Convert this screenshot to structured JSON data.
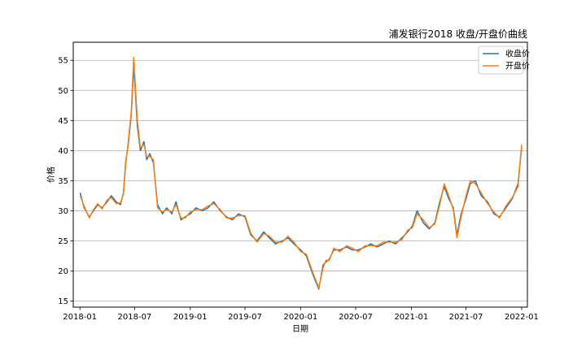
{
  "chart_data": {
    "type": "line",
    "title": "浦发银行2018 收盘/开盘价曲线",
    "xlabel": "日期",
    "ylabel": "价格",
    "xlim": [
      "2017-12-10",
      "2022-01-20"
    ],
    "ylim": [
      14.0,
      58.0
    ],
    "x_ticks": [
      "2018-01",
      "2018-07",
      "2019-01",
      "2019-07",
      "2020-01",
      "2020-07",
      "2021-01",
      "2021-07",
      "2022-01"
    ],
    "y_ticks": [
      15,
      20,
      25,
      30,
      35,
      40,
      45,
      50,
      55
    ],
    "grid": "horizontal",
    "legend": "top-right",
    "x": [
      "2018-01-02",
      "2018-01-15",
      "2018-02-01",
      "2018-02-15",
      "2018-03-01",
      "2018-03-15",
      "2018-04-01",
      "2018-04-15",
      "2018-05-01",
      "2018-05-15",
      "2018-05-25",
      "2018-06-01",
      "2018-06-10",
      "2018-06-20",
      "2018-06-28",
      "2018-07-03",
      "2018-07-10",
      "2018-07-20",
      "2018-08-01",
      "2018-08-10",
      "2018-08-20",
      "2018-09-01",
      "2018-09-15",
      "2018-10-01",
      "2018-10-15",
      "2018-11-01",
      "2018-11-15",
      "2018-12-01",
      "2018-12-15",
      "2019-01-01",
      "2019-01-20",
      "2019-02-10",
      "2019-03-01",
      "2019-03-20",
      "2019-04-10",
      "2019-05-01",
      "2019-05-20",
      "2019-06-10",
      "2019-07-01",
      "2019-07-20",
      "2019-08-10",
      "2019-09-01",
      "2019-09-20",
      "2019-10-10",
      "2019-11-01",
      "2019-11-20",
      "2019-12-10",
      "2020-01-01",
      "2020-01-20",
      "2020-02-10",
      "2020-03-01",
      "2020-03-15",
      "2020-03-25",
      "2020-04-05",
      "2020-04-20",
      "2020-05-10",
      "2020-06-01",
      "2020-06-20",
      "2020-07-10",
      "2020-08-01",
      "2020-08-20",
      "2020-09-10",
      "2020-10-01",
      "2020-10-20",
      "2020-11-10",
      "2020-12-01",
      "2020-12-20",
      "2021-01-05",
      "2021-01-20",
      "2021-02-10",
      "2021-03-01",
      "2021-03-20",
      "2021-04-05",
      "2021-04-20",
      "2021-05-05",
      "2021-05-20",
      "2021-06-01",
      "2021-06-15",
      "2021-07-01",
      "2021-07-15",
      "2021-08-01",
      "2021-08-20",
      "2021-09-10",
      "2021-10-01",
      "2021-10-20",
      "2021-11-10",
      "2021-12-01",
      "2021-12-20",
      "2022-01-01"
    ],
    "series": [
      {
        "name": "收盘价",
        "color": "#1f77b4",
        "values": [
          33.0,
          30.5,
          29.0,
          30.0,
          31.0,
          30.5,
          31.5,
          32.5,
          31.5,
          31.0,
          33.0,
          38.0,
          41.0,
          46.0,
          54.0,
          50.0,
          44.0,
          40.0,
          41.5,
          38.5,
          39.5,
          38.0,
          31.0,
          29.5,
          30.5,
          29.5,
          31.5,
          28.5,
          29.0,
          29.5,
          30.5,
          30.0,
          30.5,
          31.5,
          30.0,
          29.0,
          28.5,
          29.5,
          29.0,
          26.0,
          25.0,
          26.5,
          25.5,
          24.5,
          25.0,
          25.5,
          24.5,
          23.5,
          22.5,
          19.5,
          17.0,
          21.0,
          21.5,
          22.0,
          23.5,
          23.5,
          24.0,
          23.5,
          23.5,
          24.0,
          24.5,
          24.0,
          24.5,
          25.0,
          24.5,
          25.5,
          26.5,
          27.5,
          30.0,
          28.0,
          27.0,
          28.0,
          31.5,
          34.0,
          32.0,
          30.5,
          26.0,
          29.5,
          32.0,
          34.5,
          35.0,
          32.5,
          31.5,
          29.5,
          29.0,
          30.5,
          32.0,
          34.5,
          40.5
        ]
      },
      {
        "name": "开盘价",
        "color": "#ff7f0e",
        "values": [
          32.5,
          30.8,
          28.8,
          30.2,
          31.2,
          30.3,
          31.8,
          32.2,
          31.2,
          31.3,
          32.8,
          37.5,
          41.5,
          46.5,
          55.5,
          51.0,
          45.0,
          40.5,
          41.0,
          39.0,
          39.0,
          38.5,
          30.5,
          29.8,
          30.2,
          29.8,
          31.0,
          28.8,
          28.8,
          29.8,
          30.2,
          30.2,
          30.8,
          31.2,
          30.2,
          28.8,
          28.8,
          29.2,
          29.2,
          26.3,
          24.8,
          26.2,
          25.8,
          24.8,
          24.8,
          25.8,
          24.8,
          23.2,
          22.8,
          19.8,
          17.2,
          20.5,
          21.8,
          21.8,
          23.8,
          23.2,
          24.2,
          23.8,
          23.2,
          24.2,
          24.2,
          24.2,
          24.8,
          24.8,
          24.8,
          25.2,
          26.8,
          27.2,
          29.5,
          28.5,
          27.2,
          27.8,
          31.0,
          34.5,
          32.5,
          30.2,
          25.5,
          29.0,
          32.5,
          35.0,
          34.5,
          33.0,
          31.2,
          29.8,
          28.8,
          30.8,
          32.2,
          34.0,
          41.0
        ]
      }
    ]
  }
}
